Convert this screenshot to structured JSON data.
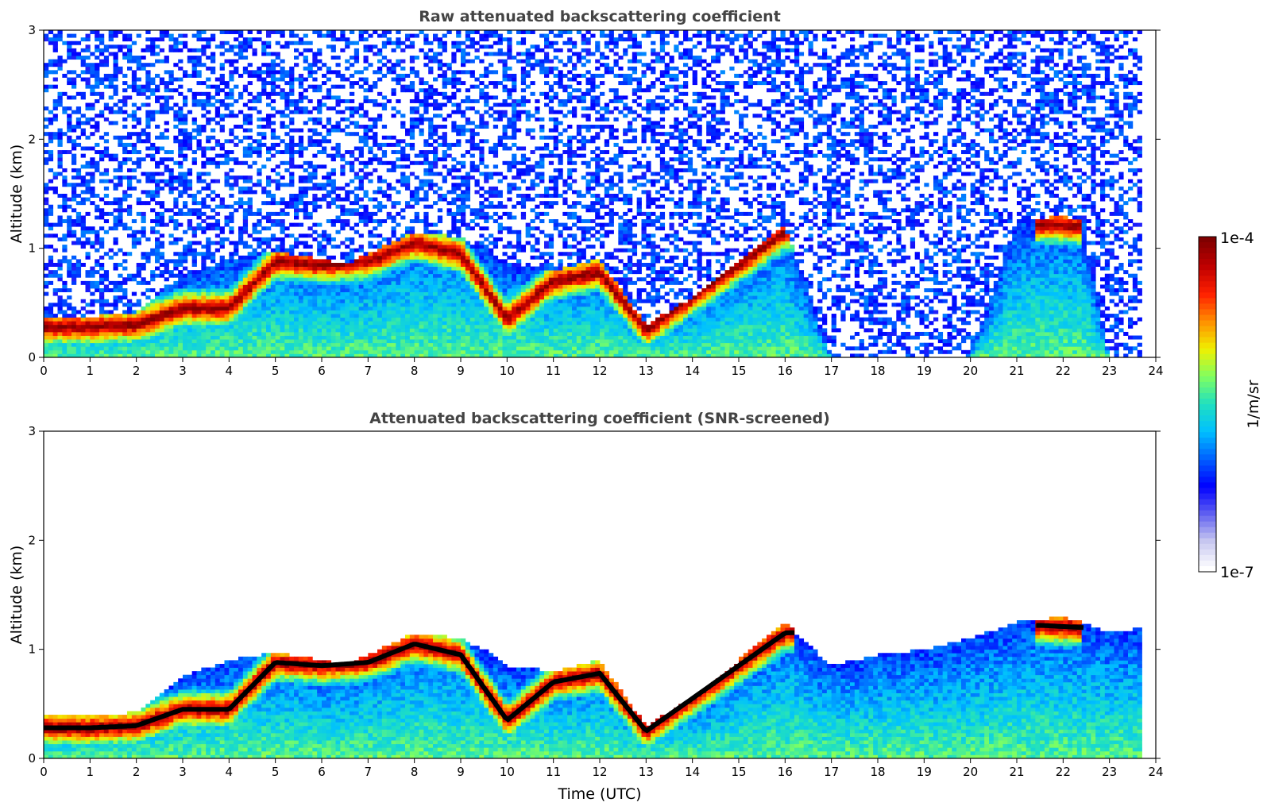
{
  "colors": {
    "colormap": [
      "#ffffff",
      "#c8c8f0",
      "#6060f0",
      "#0000ff",
      "#0060ff",
      "#00c0ff",
      "#20e0c0",
      "#80ff60",
      "#f0f000",
      "#ff9000",
      "#ff2000",
      "#c00000",
      "#800000"
    ],
    "saturated": "#000000"
  },
  "colorbar": {
    "max_label": "1e-4",
    "min_label": "1e-7",
    "unit_label": "1/m/sr",
    "scale": "log"
  },
  "chart_data": [
    {
      "type": "heatmap",
      "title": "Raw attenuated backscattering coefficient",
      "xlabel": "",
      "ylabel": "Altitude (km)",
      "xlim": [
        0,
        24
      ],
      "ylim": [
        0,
        3
      ],
      "x_ticks": [
        "0",
        "1",
        "2",
        "3",
        "4",
        "5",
        "6",
        "7",
        "8",
        "9",
        "10",
        "11",
        "12",
        "13",
        "14",
        "15",
        "16",
        "17",
        "18",
        "19",
        "20",
        "21",
        "22",
        "23",
        "24"
      ],
      "y_ticks": [
        "0",
        "1",
        "2",
        "3"
      ],
      "grid": false,
      "colorscale": "log10, 1e-7 to 1e-4 1/m/sr",
      "data_end_hour": 23.7,
      "aerosol_layer_top_km": {
        "hours": [
          0,
          1,
          2,
          2.5,
          3,
          4,
          5,
          6,
          6.5,
          7,
          8,
          9,
          9.5,
          10,
          11,
          12,
          13,
          14,
          15,
          16,
          17,
          18,
          19,
          20,
          21,
          22,
          22.4,
          23,
          23.7
        ],
        "values": [
          0.38,
          0.38,
          0.4,
          0.6,
          0.75,
          0.9,
          0.97,
          0.9,
          0.85,
          0.95,
          1.15,
          1.1,
          1.0,
          0.85,
          0.8,
          0.9,
          0.3,
          0.55,
          0.9,
          1.2,
          0.0,
          0.0,
          0.0,
          0.0,
          1.25,
          1.3,
          1.25,
          0.0,
          0.0
        ]
      },
      "peak_backscatter_altitude_km": {
        "hours": [
          0,
          1,
          2,
          3,
          4,
          5,
          6,
          7,
          8,
          9,
          10,
          11,
          12,
          13,
          14,
          15,
          16,
          21.5,
          22.4
        ],
        "values": [
          0.28,
          0.28,
          0.3,
          0.45,
          0.45,
          0.88,
          0.85,
          0.88,
          1.05,
          0.95,
          0.35,
          0.7,
          0.78,
          0.25,
          0.55,
          0.85,
          1.15,
          1.22,
          1.2
        ]
      }
    },
    {
      "type": "heatmap",
      "title": "Attenuated backscattering coefficient (SNR-screened)",
      "xlabel": "Time (UTC)",
      "ylabel": "Altitude (km)",
      "xlim": [
        0,
        24
      ],
      "ylim": [
        0,
        3
      ],
      "x_ticks": [
        "0",
        "1",
        "2",
        "3",
        "4",
        "5",
        "6",
        "7",
        "8",
        "9",
        "10",
        "11",
        "12",
        "13",
        "14",
        "15",
        "16",
        "17",
        "18",
        "19",
        "20",
        "21",
        "22",
        "23",
        "24"
      ],
      "y_ticks": [
        "0",
        "1",
        "2",
        "3"
      ],
      "grid": false,
      "colorscale": "log10, 1e-7 to 1e-4 1/m/sr",
      "data_end_hour": 23.7,
      "aerosol_layer_top_km": {
        "hours": [
          0,
          1,
          2,
          2.5,
          3,
          4,
          5,
          6,
          6.5,
          7,
          8,
          9,
          9.5,
          10,
          11,
          12,
          13,
          14,
          15,
          16,
          17,
          18,
          19,
          20,
          21,
          22,
          22.4,
          23,
          23.7
        ],
        "values": [
          0.4,
          0.4,
          0.42,
          0.6,
          0.75,
          0.9,
          0.97,
          0.9,
          0.85,
          0.95,
          1.15,
          1.1,
          1.0,
          0.85,
          0.8,
          0.9,
          0.3,
          0.55,
          0.9,
          1.25,
          0.85,
          0.95,
          1.0,
          1.1,
          1.25,
          1.3,
          1.25,
          1.15,
          1.2
        ]
      },
      "peak_backscatter_altitude_km": {
        "hours": [
          0,
          1,
          2,
          3,
          4,
          5,
          6,
          7,
          8,
          9,
          10,
          11,
          12,
          13,
          14,
          15,
          16,
          21.5,
          22.4
        ],
        "values": [
          0.28,
          0.28,
          0.3,
          0.45,
          0.45,
          0.88,
          0.85,
          0.88,
          1.05,
          0.95,
          0.35,
          0.7,
          0.78,
          0.25,
          0.55,
          0.85,
          1.15,
          1.22,
          1.2
        ]
      }
    }
  ]
}
